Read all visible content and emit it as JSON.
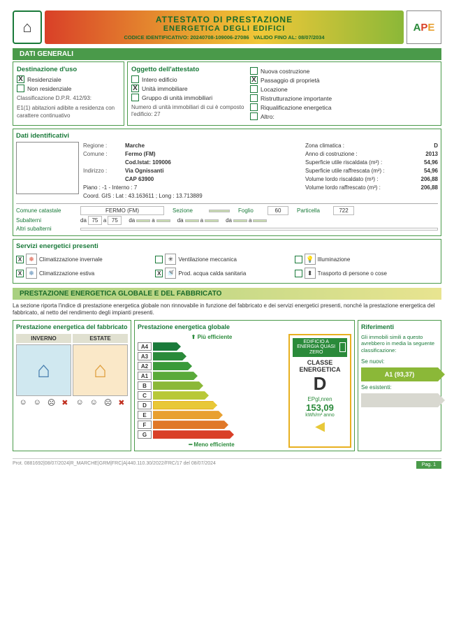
{
  "header": {
    "t1": "ATTESTATO DI PRESTAZIONE",
    "t2": "ENERGETICA DEGLI EDIFICI",
    "code": "CODICE IDENTIFICATIVO: 20240708-109006-27086",
    "valid": "VALIDO FINO AL: 08/07/2034"
  },
  "sec": {
    "dati": "DATI GENERALI",
    "prest": "PRESTAZIONE ENERGETICA GLOBALE E DEL FABBRICATO"
  },
  "dest": {
    "h": "Destinazione d'uso",
    "res": "Residenziale",
    "nonres": "Non residenziale",
    "class": "Classificazione D.P.R. 412/93:",
    "note": "E1(1) abitazioni adibite a residenza con carattere continuativo"
  },
  "ogg": {
    "h": "Oggetto dell'attestato",
    "i1": "Intero edificio",
    "i2": "Unità immobiliare",
    "i3": "Gruppo di unità immobiliari",
    "num": "Numero di unità immobiliari di cui è composto l'edificio: 27"
  },
  "mot": {
    "i1": "Nuova costruzione",
    "i2": "Passaggio di proprietà",
    "i3": "Locazione",
    "i4": "Ristrutturazione importante",
    "i5": "Riqualificazione energetica",
    "i6": "Altro:"
  },
  "id": {
    "h": "Dati identificativi",
    "regione": "Marche",
    "comune": "Fermo (FM)",
    "istat": "Cod.Istat: 109006",
    "ind": "Via Ognissanti",
    "cap": "CAP 63900",
    "piano": "Piano : -1 - Interno : 7",
    "gis": "Coord. GIS : Lat : 43.163611 ; Long : 13.713889",
    "zona": "Zona climatica :",
    "zonav": "D",
    "anno": "Anno di costruzione :",
    "annov": "2013",
    "sur": "Superficie utile riscaldata (m²) :",
    "surv": "54,96",
    "sufc": "Superficie utile raffrescata (m²) :",
    "sufcv": "54,96",
    "vlr": "Volume lordo riscaldato (m³) :",
    "vlrv": "206,88",
    "vlf": "Volume lordo raffrescato (m³) :",
    "vlfv": "206,88"
  },
  "cad": {
    "com": "Comune catastale",
    "comv": "FERMO (FM)",
    "sez": "Sezione",
    "fog": "Foglio",
    "fogv": "60",
    "part": "Particella",
    "partv": "722",
    "sub": "Subalterni",
    "da": "da",
    "a": "a",
    "v1": "75",
    "v2": "75",
    "alt": "Altri subalterni"
  },
  "serv": {
    "h": "Servizi energetici presenti",
    "s1": "Climatizzazione invernale",
    "s2": "Climatizzazione estiva",
    "s3": "Ventilazione meccanica",
    "s4": "Prod. acqua calda sanitaria",
    "s5": "Illuminazione",
    "s6": "Trasporto di persone o cose"
  },
  "desc": "La sezione riporta l'indice di prestazione energetica globale non rinnovabile in funzione del fabbricato e dei servizi energetici presenti, nonché la prestazione energetica del fabbricato, al netto del rendimento degli impianti presenti.",
  "fabb": {
    "h": "Prestazione energetica del fabbricato",
    "inv": "INVERNO",
    "est": "ESTATE"
  },
  "glob": {
    "h": "Prestazione energetica globale",
    "more": "Più efficiente",
    "less": "Meno efficiente"
  },
  "classes": [
    "A4",
    "A3",
    "A2",
    "A1",
    "B",
    "C",
    "D",
    "E",
    "F",
    "G"
  ],
  "classcolors": [
    "#1a7a3a",
    "#2a8a3a",
    "#3a9a3a",
    "#5aaa3a",
    "#8bb838",
    "#b8c838",
    "#e8c838",
    "#e8a030",
    "#e07828",
    "#d94028"
  ],
  "classwidths": [
    40,
    48,
    56,
    64,
    72,
    80,
    92,
    100,
    108,
    116
  ],
  "cbox": {
    "zero": "EDIFICIO A ENERGIA QUASI ZERO",
    "cl": "CLASSE ENERGETICA",
    "big": "D",
    "ep": "EPgl,nren",
    "epv": "153,09",
    "unit": "kWh/m² anno"
  },
  "rif": {
    "h": "Riferimenti",
    "txt": "Gli immobili simili a questo avrebbero in media la seguente classificazione:",
    "n": "Se nuovi:",
    "nv": "A1 (93,37)",
    "e": "Se esistenti:"
  },
  "foot": {
    "l": "Prot. 0881692|08/07/2024|R_MARCHE|GRM|FRC|A|440.110.30/2022/FRC/17 del 08/07/2024",
    "r": "Pag. 1"
  }
}
